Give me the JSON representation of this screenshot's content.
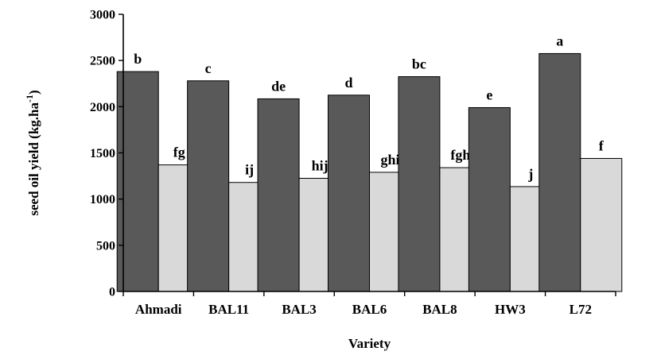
{
  "chart_data": {
    "type": "bar",
    "title": "",
    "xlabel": "Variety",
    "ylabel": "seed oil yield (kg.ha-1)",
    "ylabel_parts": {
      "main": "seed oil yield (kg.ha",
      "sup": "-1",
      "end": ")"
    },
    "ylim": [
      0,
      3000
    ],
    "yticks": [
      0,
      500,
      1000,
      1500,
      2000,
      2500,
      3000
    ],
    "categories": [
      "Ahmadi",
      "BAL11",
      "BAL3",
      "BAL6",
      "BAL8",
      "HW3",
      "L72"
    ],
    "grid": false,
    "legend": "none",
    "series": [
      {
        "color": "#595959",
        "values": [
          2380,
          2280,
          2085,
          2125,
          2325,
          1990,
          2575
        ],
        "labels": [
          "b",
          "c",
          "de",
          "d",
          "bc",
          "e",
          "a"
        ]
      },
      {
        "color": "#d9d9d9",
        "values": [
          1370,
          1180,
          1225,
          1290,
          1340,
          1135,
          1440
        ],
        "labels": [
          "fg",
          "ij",
          "hij",
          "ghi",
          "fgh",
          "j",
          "f"
        ]
      }
    ]
  }
}
